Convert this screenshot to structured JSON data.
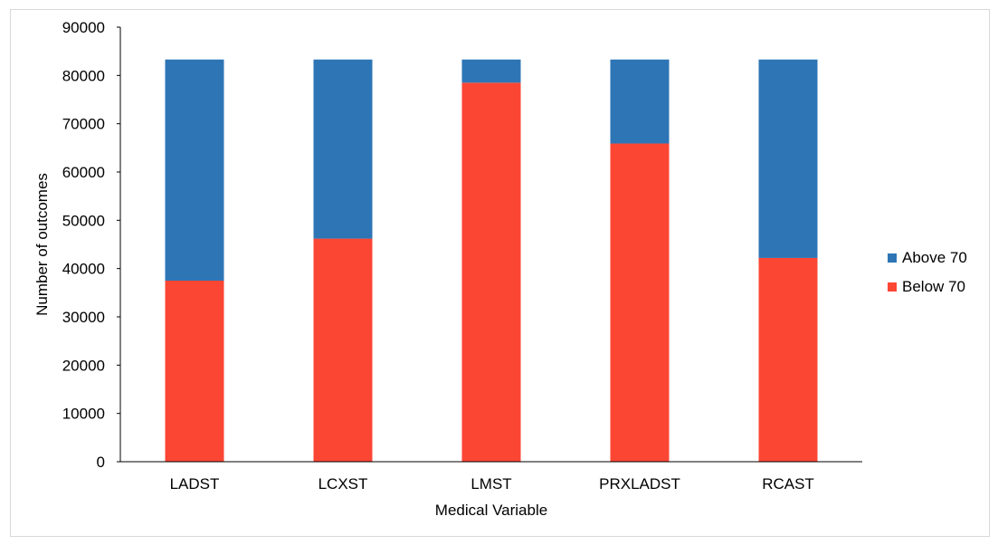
{
  "chart_data": {
    "type": "bar",
    "stacked": true,
    "xlabel": "Medical Variable",
    "ylabel": "Number of outcomes",
    "ylim": [
      0,
      90000
    ],
    "yticks": [
      0,
      10000,
      20000,
      30000,
      40000,
      50000,
      60000,
      70000,
      80000,
      90000
    ],
    "grid": false,
    "legend_position": "right",
    "categories": [
      "LADST",
      "LCXST",
      "LMST",
      "PRXLADST",
      "RCAST"
    ],
    "series": [
      {
        "name": "Below 70",
        "color": "#fc4634",
        "values": [
          37500,
          46200,
          78500,
          65900,
          42200
        ]
      },
      {
        "name": "Above 70",
        "color": "#2e75b6",
        "values": [
          45800,
          37100,
          4800,
          17400,
          41100
        ]
      }
    ]
  }
}
